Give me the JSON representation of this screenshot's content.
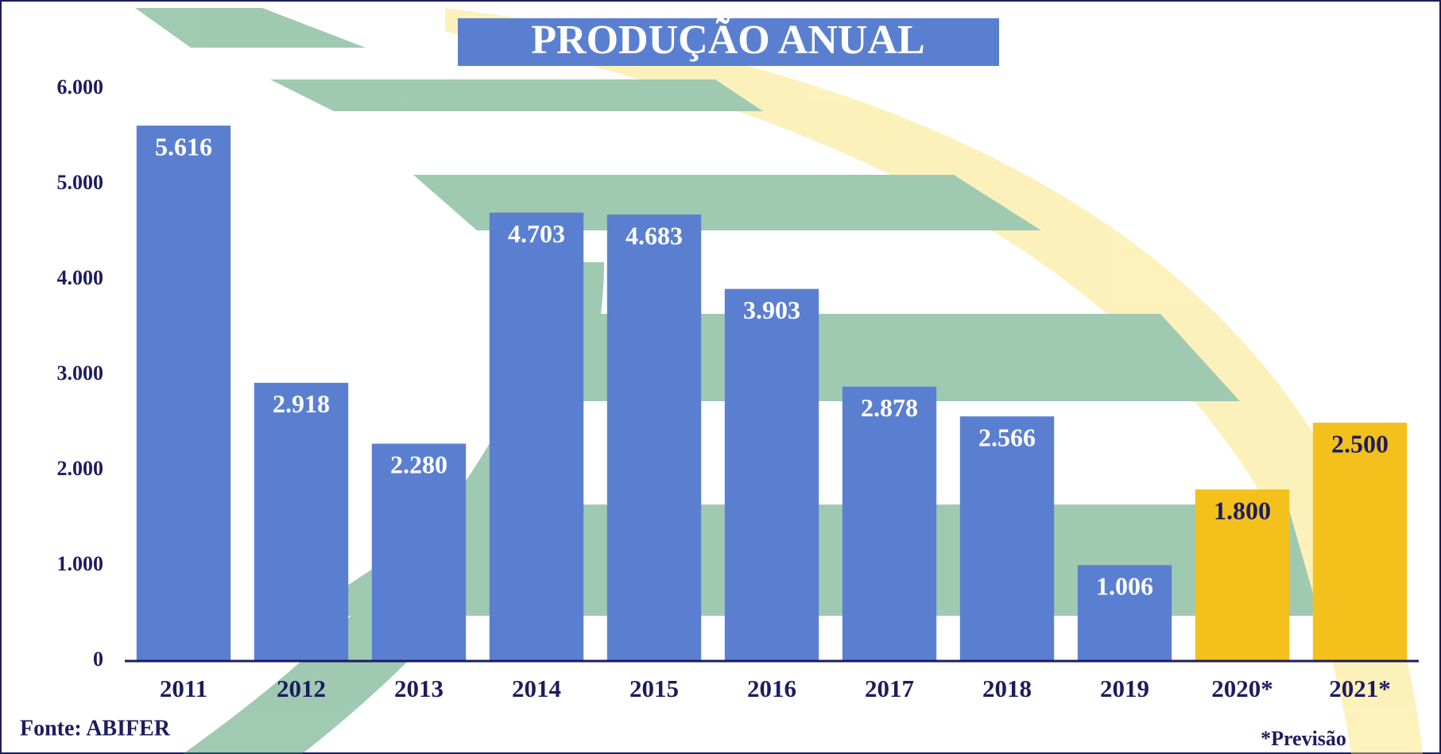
{
  "chart_data": {
    "type": "bar",
    "title": "PRODUÇÃO ANUAL",
    "categories": [
      "2011",
      "2012",
      "2013",
      "2014",
      "2015",
      "2016",
      "2017",
      "2018",
      "2019",
      "2020*",
      "2021*"
    ],
    "values": [
      5616,
      2918,
      2280,
      4703,
      4683,
      3903,
      2878,
      2566,
      1006,
      1800,
      2500
    ],
    "value_labels": [
      "5.616",
      "2.918",
      "2.280",
      "4.703",
      "4.683",
      "3.903",
      "2.878",
      "2.566",
      "1.006",
      "1.800",
      "2.500"
    ],
    "colors": [
      "#5b7fd0",
      "#5b7fd0",
      "#5b7fd0",
      "#5b7fd0",
      "#5b7fd0",
      "#5b7fd0",
      "#5b7fd0",
      "#5b7fd0",
      "#5b7fd0",
      "#f4c11c",
      "#f4c11c"
    ],
    "label_colors": [
      "#ffffff",
      "#ffffff",
      "#ffffff",
      "#ffffff",
      "#ffffff",
      "#ffffff",
      "#ffffff",
      "#ffffff",
      "#ffffff",
      "#1c1c5e",
      "#1c1c5e"
    ],
    "ylim": [
      0,
      6000
    ],
    "yticks": [
      0,
      {
        "value": 1000,
        "label": "1.000"
      },
      {
        "value": 2000,
        "label": "2.000"
      },
      {
        "value": 3000,
        "label": "3.000"
      },
      {
        "value": 4000,
        "label": "4.000"
      },
      {
        "value": 5000,
        "label": "5.000"
      },
      {
        "value": 6000,
        "label": "6.000"
      }
    ],
    "source": "Fonte: ABIFER",
    "note": "*Previsão"
  }
}
